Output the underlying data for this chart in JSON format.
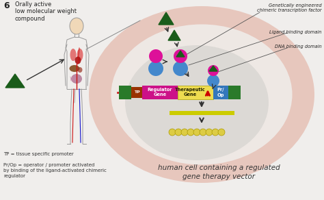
{
  "bg_color": "#f0eeec",
  "title_num": "6",
  "title_text": "Orally active\nlow molecular weight\ncompound",
  "footnote1": "TP = tissue specific promoter",
  "footnote2": "Pr/Op = operator / promoter activated\nby binding of the ligand-activated chimeric\nregulator",
  "caption": "human cell containing a regulated\ngene therapy vector",
  "label_gctf": "Genetically engineered\nchimeric transcription factor",
  "label_lbd": "Ligand binding domain",
  "label_dbd": "DNA binding domain",
  "outer_ellipse_color": "#e0a898",
  "inner_ellipse_color": "#c0c0c0",
  "green_box_color": "#2a7a2a",
  "magenta_box_color": "#cc1188",
  "yellow_box_color": "#eedc50",
  "blue_box_color": "#3377bb",
  "dark_green_triangle": "#1a5c1a",
  "arrow_color": "#333333",
  "body_color": "#f0d8b8",
  "body_outline": "#999999"
}
